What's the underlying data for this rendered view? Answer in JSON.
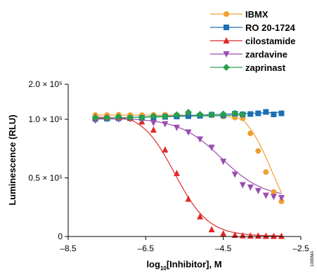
{
  "chart_data": {
    "type": "scatter",
    "title": "",
    "xlabel_prefix": "log",
    "xlabel_sub": "10",
    "xlabel_rest": "[Inhibitor], M",
    "ylabel": "Luminescence (RLU)",
    "xlim": [
      -8.5,
      -2.5
    ],
    "ylim": [
      0,
      200000
    ],
    "x_ticks": [
      -8.5,
      -6.5,
      -4.5,
      -2.5
    ],
    "x_tick_labels": [
      "–8.5",
      "–6.5",
      "–4.5",
      "–2.5"
    ],
    "y_ticks": [
      0,
      50000,
      100000,
      200000
    ],
    "y_tick_labels": [
      "0",
      "0.5 × 10⁵",
      "1.0 × 10⁵",
      "2.0 × 10⁵"
    ],
    "legend_position": "top-right",
    "side_note": "1099MA",
    "series": [
      {
        "name": "IBMX",
        "color": "#f0a030",
        "marker": "circle",
        "x": [
          -7.8,
          -7.5,
          -7.2,
          -6.9,
          -6.6,
          -6.3,
          -6.0,
          -5.7,
          -5.4,
          -5.1,
          -4.8,
          -4.5,
          -4.2,
          -4.0,
          -3.8,
          -3.6,
          -3.4,
          -3.2,
          -3.0
        ],
        "y": [
          112000,
          112000,
          113000,
          112000,
          112000,
          112500,
          113000,
          112000,
          113000,
          111000,
          112000,
          108000,
          105000,
          103000,
          88000,
          73000,
          55000,
          38000,
          30000
        ],
        "fit": "sigmoid",
        "fit_top": 112000,
        "fit_bottom": 0,
        "fit_ec50": -3.25,
        "fit_hill": 1.2
      },
      {
        "name": "RO 20-1724",
        "color": "#1c6fb4",
        "marker": "square",
        "x": [
          -7.8,
          -7.5,
          -7.2,
          -6.9,
          -6.6,
          -6.3,
          -6.0,
          -5.7,
          -5.4,
          -5.1,
          -4.8,
          -4.5,
          -4.2,
          -4.0,
          -3.8,
          -3.6,
          -3.4,
          -3.2,
          -3.0
        ],
        "y": [
          101000,
          102000,
          103000,
          103000,
          104000,
          105000,
          107000,
          108000,
          109000,
          110000,
          113000,
          111000,
          116000,
          114000,
          115000,
          117000,
          121000,
          114000,
          117000
        ],
        "fit": "linear",
        "fit_start": 102000,
        "fit_end": 120000
      },
      {
        "name": "cilostamide",
        "color": "#e02828",
        "marker": "triangle-up",
        "x": [
          -7.8,
          -7.5,
          -7.2,
          -6.9,
          -6.6,
          -6.3,
          -6.0,
          -5.7,
          -5.4,
          -5.1,
          -4.8,
          -4.5,
          -4.2,
          -4.0,
          -3.8,
          -3.6,
          -3.4,
          -3.2,
          -3.0
        ],
        "y": [
          107000,
          106000,
          106000,
          103000,
          98000,
          91000,
          74000,
          54000,
          32000,
          17000,
          6000,
          2500,
          1200,
          800,
          600,
          500,
          400,
          300,
          300
        ],
        "fit": "sigmoid",
        "fit_top": 107000,
        "fit_bottom": 300,
        "fit_ec50": -5.75,
        "fit_hill": 1.0
      },
      {
        "name": "zardavine",
        "color": "#9a4db0",
        "marker": "triangle-down",
        "x": [
          -7.8,
          -7.5,
          -7.2,
          -6.9,
          -6.6,
          -6.3,
          -6.0,
          -5.7,
          -5.4,
          -5.1,
          -4.8,
          -4.5,
          -4.2,
          -4.0,
          -3.8,
          -3.6,
          -3.4,
          -3.2,
          -3.0
        ],
        "y": [
          99000,
          101000,
          100000,
          101000,
          100000,
          97000,
          96000,
          93000,
          89000,
          83000,
          76000,
          64000,
          53000,
          44000,
          42000,
          39000,
          35000,
          34000,
          33000
        ],
        "fit": "sigmoid",
        "fit_top": 101000,
        "fit_bottom": 33000,
        "fit_ec50": -4.55,
        "fit_hill": 0.8
      },
      {
        "name": "zaprinast",
        "color": "#2aa048",
        "marker": "diamond",
        "x": [
          -7.8,
          -7.5,
          -7.2,
          -6.9,
          -6.6,
          -6.3,
          -6.0,
          -5.7,
          -5.4,
          -5.1,
          -4.8,
          -4.5,
          -4.2,
          -4.0
        ],
        "y": [
          105000,
          104000,
          107000,
          105000,
          105000,
          109000,
          108000,
          113000,
          120000,
          114000,
          113000,
          115000,
          117000,
          114000
        ],
        "fit": "linear",
        "fit_start": 103000,
        "fit_end": 112000
      }
    ]
  }
}
